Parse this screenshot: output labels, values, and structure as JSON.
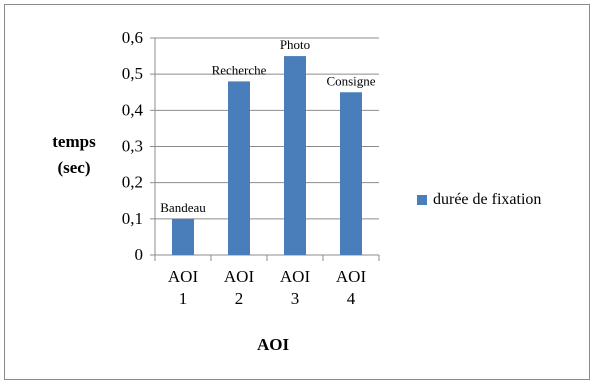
{
  "chart_data": {
    "type": "bar",
    "categories": [
      "AOI\n1",
      "AOI\n2",
      "AOI\n3",
      "AOI\n4"
    ],
    "series": [
      {
        "name": "durée de fixation",
        "values": [
          0.1,
          0.48,
          0.55,
          0.45
        ],
        "data_labels": [
          "Bandeau",
          "Recherche",
          "Photo",
          "Consigne"
        ]
      }
    ],
    "xlabel": "AOI",
    "ylabel": "temps\n(sec)",
    "ylim": [
      0,
      0.6
    ],
    "yticks": [
      "0",
      "0,1",
      "0,2",
      "0,3",
      "0,4",
      "0,5",
      "0,6"
    ],
    "grid": true,
    "legend": "right",
    "colors": {
      "bar": "#4a7ebb",
      "grid": "#8c8c8c",
      "axis": "#8c8c8c"
    }
  }
}
